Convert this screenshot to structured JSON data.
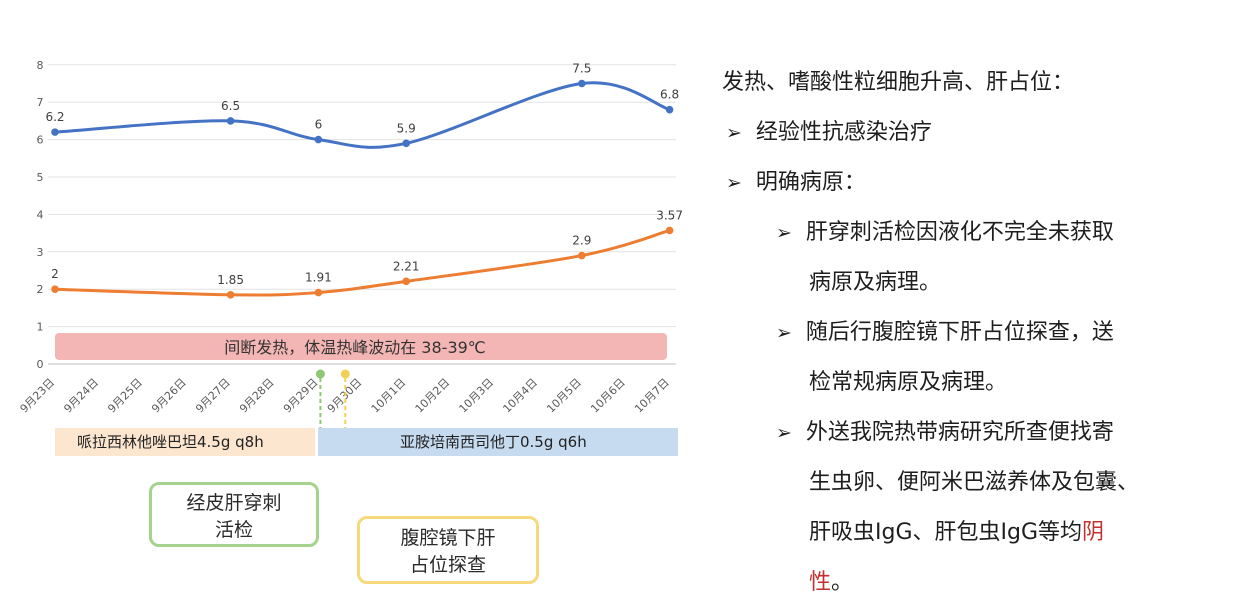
{
  "chart_data": {
    "type": "line",
    "categories": [
      "9月23日",
      "9月24日",
      "9月25日",
      "9月26日",
      "9月27日",
      "9月28日",
      "9月29日",
      "9月30日",
      "10月1日",
      "10月2日",
      "10月3日",
      "10月4日",
      "10月5日",
      "10月6日",
      "10月7日"
    ],
    "ylim": [
      0,
      8
    ],
    "yticks": [
      "0",
      "1",
      "2",
      "3",
      "4",
      "5",
      "6",
      "7",
      "8"
    ],
    "grid": true,
    "series": [
      {
        "color": "#4472c4",
        "points": [
          {
            "x": "9月23日",
            "y": 6.2,
            "label": "6.2"
          },
          {
            "x": "9月27日",
            "y": 6.5,
            "label": "6.5"
          },
          {
            "x": "9月29日",
            "y": 6.0,
            "label": "6"
          },
          {
            "x": "10月1日",
            "y": 5.9,
            "label": "5.9"
          },
          {
            "x": "10月5日",
            "y": 7.5,
            "label": "7.5"
          },
          {
            "x": "10月7日",
            "y": 6.8,
            "label": "6.8"
          }
        ]
      },
      {
        "color": "#ed7d31",
        "points": [
          {
            "x": "9月23日",
            "y": 2.0,
            "label": "2"
          },
          {
            "x": "9月27日",
            "y": 1.85,
            "label": "1.85"
          },
          {
            "x": "9月29日",
            "y": 1.91,
            "label": "1.91"
          },
          {
            "x": "10月1日",
            "y": 2.21,
            "label": "2.21"
          },
          {
            "x": "10月5日",
            "y": 2.9,
            "label": "2.9"
          },
          {
            "x": "10月7日",
            "y": 3.57,
            "label": "3.57"
          }
        ]
      }
    ],
    "fever_band": {
      "text": "间断发热，体温热峰波动在 38-39℃",
      "color": "#f4b6b4"
    }
  },
  "drugs": [
    {
      "text": "哌拉西林他唑巴坦4.5g q8h",
      "color": "#fce6d0"
    },
    {
      "text": "亚胺培南西司他丁0.5g q6h",
      "color": "#c6dbf0"
    }
  ],
  "procedures": [
    {
      "line1": "经皮肝穿刺",
      "line2": "活检",
      "date": "9月29日",
      "color": "#8fc874"
    },
    {
      "line1": "腹腔镜下肝",
      "line2": "占位探查",
      "date": "9月30日",
      "color": "#f2cf55"
    }
  ],
  "right_panel": {
    "heading": "发热、嗜酸性粒细胞升高、肝占位：",
    "arrow": "➢",
    "items": [
      {
        "text": "经验性抗感染治疗"
      },
      {
        "text": "明确病原："
      }
    ],
    "subitems": [
      {
        "lines": [
          "肝穿刺活检因液化不完全未获取",
          "病原及病理。"
        ]
      },
      {
        "lines": [
          "随后行腹腔镜下肝占位探查，送",
          "检常规病原及病理。"
        ]
      },
      {
        "lines": [
          "外送我院热带病研究所查便找寄",
          "生虫卵、便阿米巴滋养体及包囊、",
          "肝吸虫IgG、肝包虫IgG等均"
        ],
        "neg_end": "阴",
        "last_line": "性。",
        "neg_start": "性"
      }
    ]
  }
}
